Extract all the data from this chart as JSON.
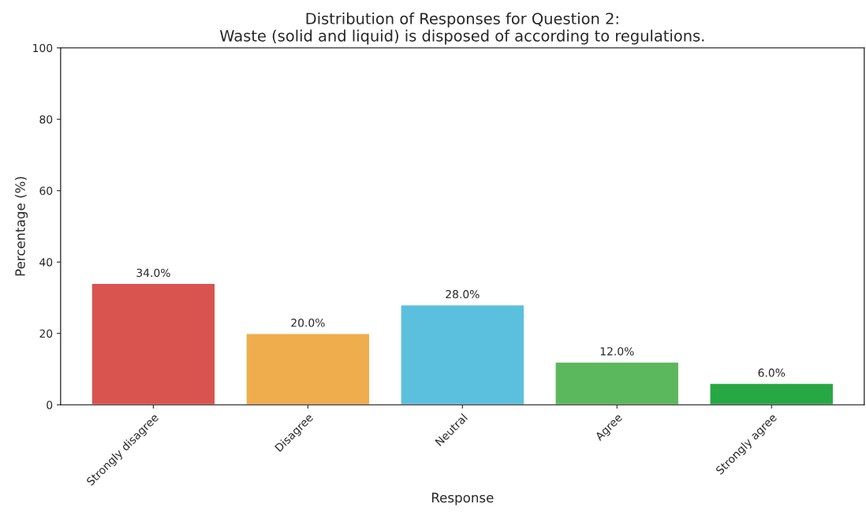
{
  "chart_data": {
    "type": "bar",
    "title": "Distribution of Responses for Question 2:\nWaste (solid and liquid) is disposed of according to regulations.",
    "xlabel": "Response",
    "ylabel": "Percentage (%)",
    "categories": [
      "Strongly disagree",
      "Disagree",
      "Neutral",
      "Agree",
      "Strongly agree"
    ],
    "values": [
      34.0,
      20.0,
      28.0,
      12.0,
      6.0
    ],
    "colors": [
      "#d9534f",
      "#f0ad4e",
      "#5bc0de",
      "#5cb85c",
      "#28a745"
    ],
    "value_labels": [
      "34.0%",
      "20.0%",
      "28.0%",
      "12.0%",
      "6.0%"
    ],
    "ylim": [
      0,
      100
    ],
    "yticks": [
      0,
      20,
      40,
      60,
      80,
      100
    ],
    "grid": false,
    "legend": false
  }
}
